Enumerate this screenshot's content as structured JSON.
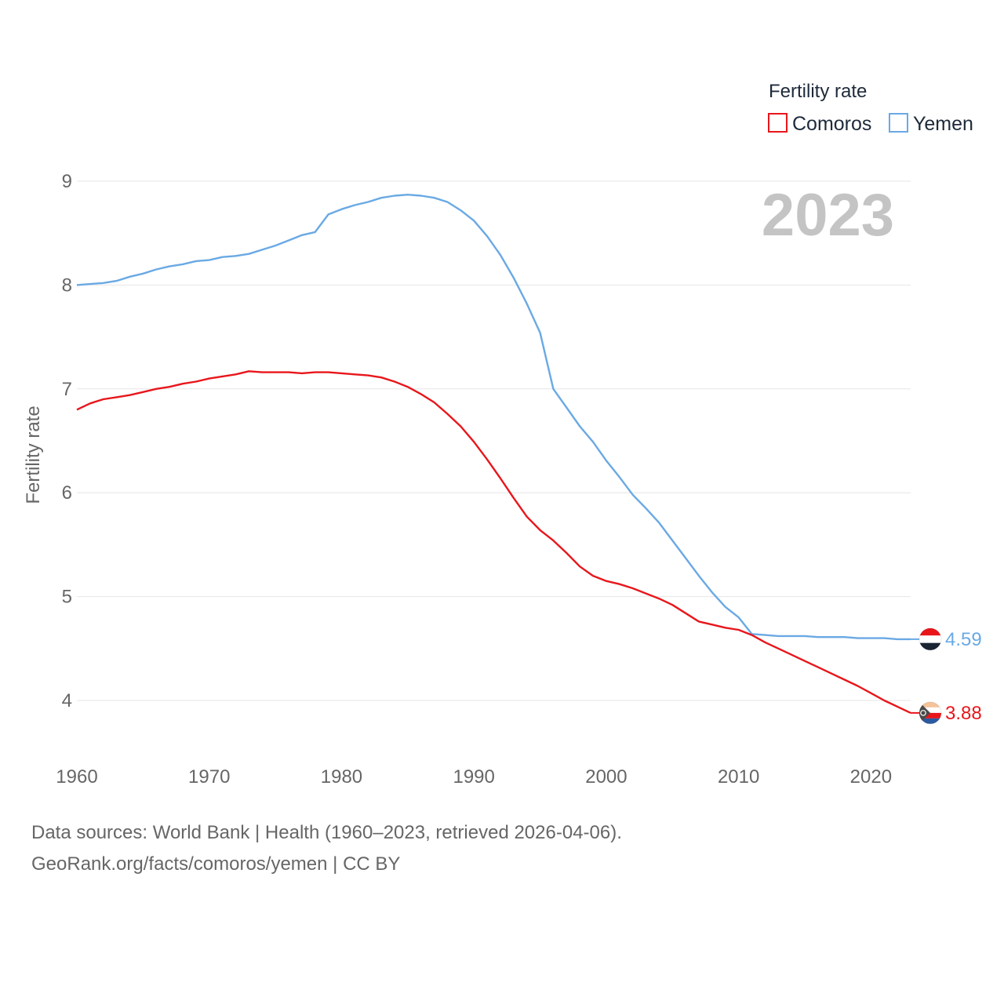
{
  "chart_data": {
    "type": "line",
    "ylabel": "Fertility rate",
    "legend_title": "Fertility rate",
    "year_label": "2023",
    "xlim": [
      1960,
      2023
    ],
    "ylim": [
      3.5,
      9.2
    ],
    "x_ticks": [
      1960,
      1970,
      1980,
      1990,
      2000,
      2010,
      2020
    ],
    "y_ticks": [
      4,
      5,
      6,
      7,
      8,
      9
    ],
    "x": [
      1960,
      1961,
      1962,
      1963,
      1964,
      1965,
      1966,
      1967,
      1968,
      1969,
      1970,
      1971,
      1972,
      1973,
      1974,
      1975,
      1976,
      1977,
      1978,
      1979,
      1980,
      1981,
      1982,
      1983,
      1984,
      1985,
      1986,
      1987,
      1988,
      1989,
      1990,
      1991,
      1992,
      1993,
      1994,
      1995,
      1996,
      1997,
      1998,
      1999,
      2000,
      2001,
      2002,
      2003,
      2004,
      2005,
      2006,
      2007,
      2008,
      2009,
      2010,
      2011,
      2012,
      2013,
      2014,
      2015,
      2016,
      2017,
      2018,
      2019,
      2020,
      2021,
      2022,
      2023
    ],
    "series": [
      {
        "name": "Comoros",
        "color": "#e8161b",
        "end_label": "3.88",
        "values": [
          6.8,
          6.86,
          6.9,
          6.92,
          6.94,
          6.97,
          7.0,
          7.02,
          7.05,
          7.07,
          7.1,
          7.12,
          7.14,
          7.17,
          7.16,
          7.16,
          7.16,
          7.15,
          7.16,
          7.16,
          7.15,
          7.14,
          7.13,
          7.11,
          7.07,
          7.02,
          6.95,
          6.87,
          6.76,
          6.64,
          6.49,
          6.32,
          6.14,
          5.95,
          5.77,
          5.64,
          5.54,
          5.42,
          5.29,
          5.2,
          5.15,
          5.12,
          5.08,
          5.03,
          4.98,
          4.92,
          4.84,
          4.76,
          4.73,
          4.7,
          4.68,
          4.63,
          4.56,
          4.5,
          4.44,
          4.38,
          4.32,
          4.26,
          4.2,
          4.14,
          4.07,
          4.0,
          3.94,
          3.88
        ]
      },
      {
        "name": "Yemen",
        "color": "#6aa9e4",
        "end_label": "4.59",
        "values": [
          8.0,
          8.01,
          8.02,
          8.04,
          8.08,
          8.11,
          8.15,
          8.18,
          8.2,
          8.23,
          8.24,
          8.27,
          8.28,
          8.3,
          8.34,
          8.38,
          8.43,
          8.48,
          8.51,
          8.68,
          8.73,
          8.77,
          8.8,
          8.84,
          8.86,
          8.87,
          8.86,
          8.84,
          8.8,
          8.72,
          8.62,
          8.47,
          8.29,
          8.07,
          7.82,
          7.54,
          7.0,
          6.82,
          6.64,
          6.49,
          6.31,
          6.15,
          5.98,
          5.85,
          5.71,
          5.54,
          5.37,
          5.2,
          5.04,
          4.9,
          4.8,
          4.64,
          4.63,
          4.62,
          4.62,
          4.62,
          4.61,
          4.61,
          4.61,
          4.6,
          4.6,
          4.6,
          4.59,
          4.59
        ]
      }
    ]
  },
  "footer": {
    "line1": "Data sources: World Bank | Health (1960–2023, retrieved 2026-04-06).",
    "line2": "GeoRank.org/facts/comoros/yemen | CC BY"
  }
}
